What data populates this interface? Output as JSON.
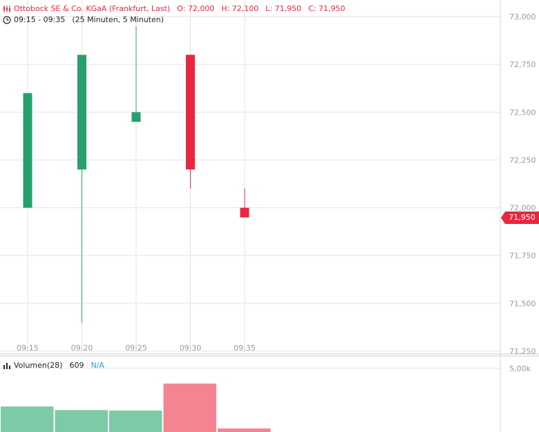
{
  "header": {
    "instrument": "Ottobock SE & Co. KGaA (Frankfurt, Last)",
    "open_label": "O: 72,000",
    "high_label": "H: 72,100",
    "low_label": "L: 71,950",
    "close_label": "C: 71,950",
    "time_range": "09:15 - 09:35",
    "interval": "(25 Minuten, 5 Minuten)"
  },
  "volume_header": {
    "label": "Volumen(28)",
    "value": "609",
    "extra": "N/A"
  },
  "last_price": "71,950",
  "colors": {
    "up": "#27a06e",
    "down": "#e8273f",
    "up_volume": "#7ccaa6",
    "down_volume": "#f58492",
    "grid": "#e3e3e3",
    "axis_text": "#999999"
  },
  "chart_data": {
    "type": "candlestick",
    "x": [
      "09:15",
      "09:20",
      "09:25",
      "09:30",
      "09:35"
    ],
    "candles": [
      {
        "time": "09:15",
        "open": 72.0,
        "high": 72.6,
        "low": 72.0,
        "close": 72.6
      },
      {
        "time": "09:20",
        "open": 72.2,
        "high": 72.8,
        "low": 71.4,
        "close": 72.8
      },
      {
        "time": "09:25",
        "open": 72.45,
        "high": 72.95,
        "low": 72.45,
        "close": 72.5
      },
      {
        "time": "09:30",
        "open": 72.8,
        "high": 72.8,
        "low": 72.1,
        "close": 72.2
      },
      {
        "time": "09:35",
        "open": 72.0,
        "high": 72.1,
        "low": 71.95,
        "close": 71.95
      }
    ],
    "y_ticks": [
      "73,000",
      "72,750",
      "72,500",
      "72,250",
      "72,000",
      "71,750",
      "71,500",
      "71,250"
    ],
    "y_tick_values": [
      73.0,
      72.75,
      72.5,
      72.25,
      72.0,
      71.75,
      71.5,
      71.25
    ],
    "ylim": [
      71.25,
      73.0
    ],
    "volume": {
      "values": [
        2000,
        1720,
        1680,
        3800,
        280
      ],
      "directions": [
        "up",
        "up",
        "up",
        "down",
        "down"
      ],
      "y_ticks": [
        "5,00k"
      ],
      "y_tick_values": [
        5000
      ]
    },
    "grid": true
  }
}
